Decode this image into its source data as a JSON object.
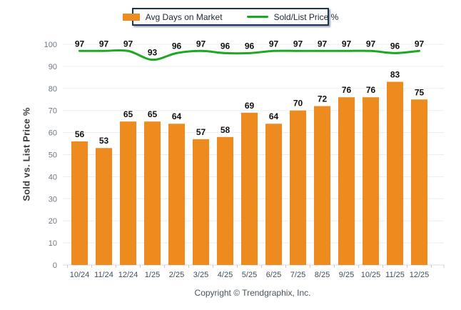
{
  "footer": "Copyright © Trendgraphix, Inc.",
  "colors": {
    "bar": "#EE8B1E",
    "line": "#1EA723",
    "grid": "#ECEDF2",
    "axis": "#D9DBE0",
    "tick": "#C9CCD4",
    "legend_border": "#16365C"
  },
  "chart_data": {
    "type": "bar",
    "categories": [
      "10/24",
      "11/24",
      "12/24",
      "1/25",
      "2/25",
      "3/25",
      "4/25",
      "5/25",
      "6/25",
      "7/25",
      "8/25",
      "9/25",
      "10/25",
      "11/25",
      "12/25"
    ],
    "series": [
      {
        "name": "Avg Days on Market",
        "type": "bar",
        "color": "#EE8B1E",
        "values": [
          56,
          53,
          65,
          65,
          64,
          57,
          58,
          69,
          64,
          70,
          72,
          76,
          76,
          83,
          75
        ]
      },
      {
        "name": "Sold/List Price %",
        "type": "line",
        "color": "#1EA723",
        "values": [
          97,
          97,
          97,
          93,
          96,
          97,
          96,
          96,
          97,
          97,
          97,
          97,
          97,
          96,
          97
        ]
      }
    ],
    "title": "",
    "xlabel": "",
    "ylabel": "Sold vs. List Price %",
    "ylim": [
      0,
      100
    ],
    "yticks": [
      0,
      10,
      20,
      30,
      40,
      50,
      60,
      70,
      80,
      90,
      100
    ],
    "grid": true,
    "legend_position": "top-center",
    "data_labels": true
  }
}
